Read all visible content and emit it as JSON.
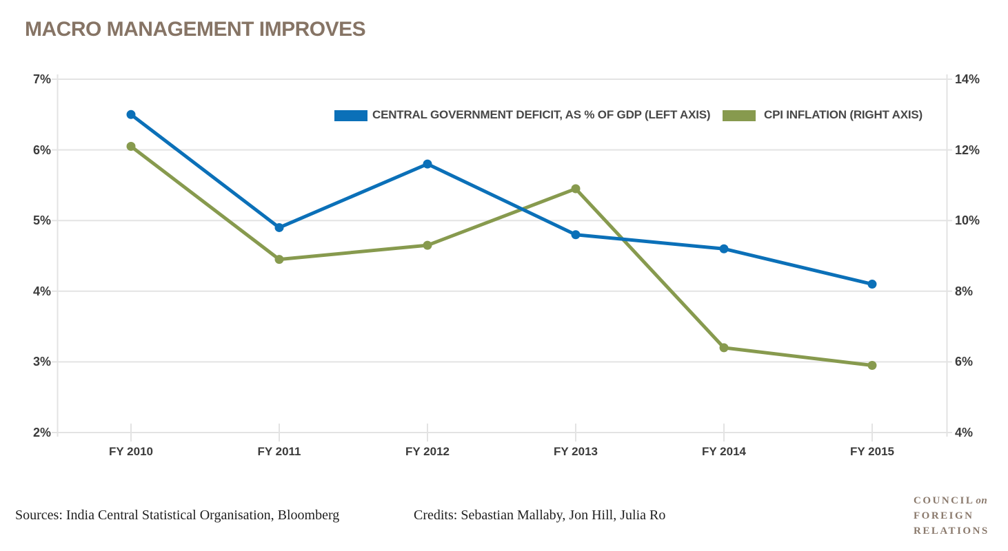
{
  "title": "MACRO MANAGEMENT IMPROVES",
  "legend": [
    {
      "label": "CENTRAL GOVERNMENT DEFICIT, AS % OF GDP (LEFT AXIS)",
      "color": "#0b70b8"
    },
    {
      "label": "CPI INFLATION (RIGHT AXIS)",
      "color": "#879a4e"
    }
  ],
  "chart_data": {
    "type": "line",
    "title": "MACRO MANAGEMENT IMPROVES",
    "categories": [
      "FY 2010",
      "FY 2011",
      "FY 2012",
      "FY 2013",
      "FY 2014",
      "FY 2015"
    ],
    "series": [
      {
        "name": "Central government deficit, as % of GDP",
        "axis": "left",
        "color": "#0b70b8",
        "values": [
          6.5,
          4.9,
          5.8,
          4.8,
          4.6,
          4.1
        ]
      },
      {
        "name": "CPI inflation",
        "axis": "right",
        "color": "#879a4e",
        "values": [
          12.1,
          8.9,
          9.3,
          10.9,
          6.4,
          5.9
        ]
      }
    ],
    "left_axis": {
      "min": 2,
      "max": 7,
      "ticks": [
        "7%",
        "6%",
        "5%",
        "4%",
        "3%",
        "2%"
      ]
    },
    "right_axis": {
      "min": 4,
      "max": 14,
      "ticks": [
        "14%",
        "12%",
        "10%",
        "8%",
        "6%",
        "4%"
      ]
    },
    "grid": "horizontal-only",
    "legend_position": "top-inside",
    "marker": "circle"
  },
  "footer": {
    "sources": "Sources: India Central Statistical Organisation, Bloomberg",
    "credits": "Credits: Sebastian Mallaby, Jon Hill, Julia Ro"
  },
  "logo": {
    "line1": "COUNCIL",
    "line1_suffix": "on",
    "line2": "FOREIGN",
    "line3": "RELATIONS"
  },
  "colors": {
    "title": "#867465",
    "deficit_line": "#0b70b8",
    "cpi_line": "#879a4e",
    "grid": "#e3e3e3",
    "axis_text": "#3b3b3b",
    "legend_text": "#474747",
    "logo": "#8a796c"
  }
}
